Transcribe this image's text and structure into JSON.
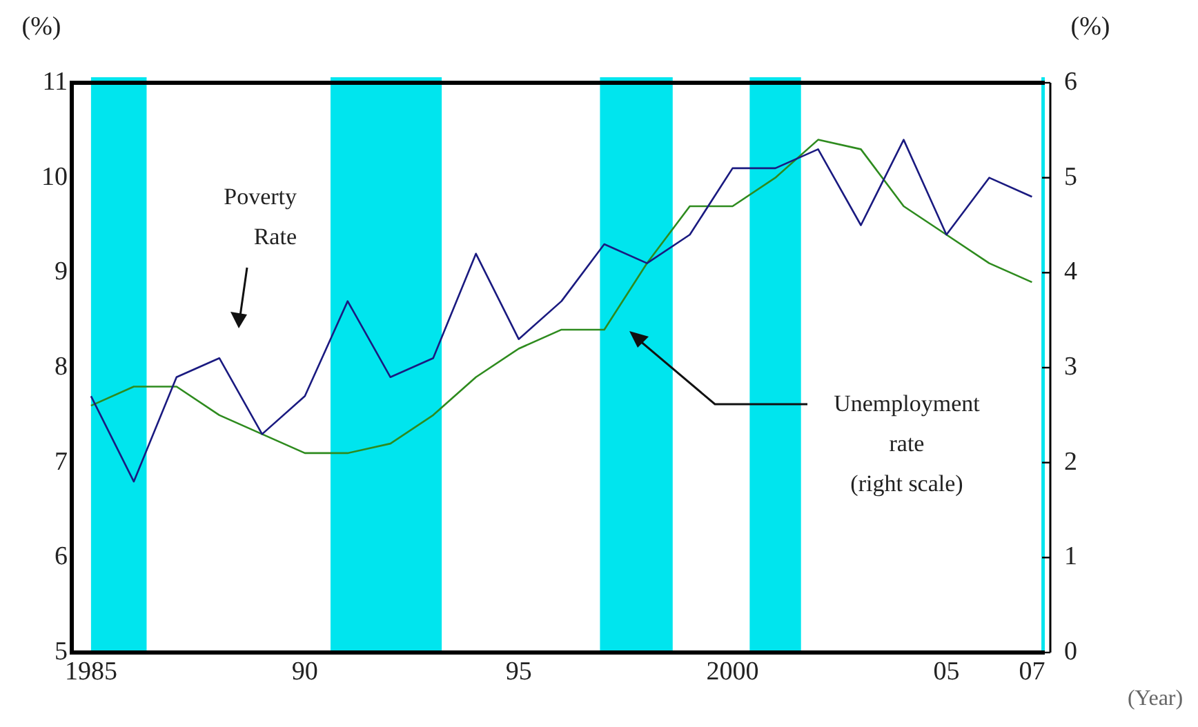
{
  "chart_data": {
    "type": "line",
    "x": [
      1985,
      1986,
      1987,
      1988,
      1989,
      1990,
      1991,
      1992,
      1993,
      1994,
      1995,
      1996,
      1997,
      1998,
      1999,
      2000,
      2001,
      2002,
      2003,
      2004,
      2005,
      2006,
      2007
    ],
    "series": [
      {
        "color": "#1a1a80",
        "values": [
          7.7,
          6.8,
          7.9,
          8.1,
          7.3,
          7.7,
          8.7,
          7.9,
          8.1,
          9.2,
          8.3,
          8.7,
          9.3,
          9.1,
          9.4,
          10.1,
          10.1,
          10.3,
          9.5,
          10.4,
          9.4,
          10.0,
          9.8
        ]
      },
      {
        "color": "#2e8b1e",
        "axis": "y2",
        "values": [
          2.6,
          2.8,
          2.8,
          2.5,
          2.3,
          2.1,
          2.1,
          2.2,
          2.5,
          2.9,
          3.2,
          3.4,
          3.4,
          4.1,
          4.7,
          4.7,
          5.0,
          5.4,
          5.3,
          4.7,
          4.4,
          4.1,
          3.9
        ]
      }
    ],
    "xlim": [
      1984.55,
      2007.3
    ],
    "xticks": [
      {
        "value": 1985,
        "label": "1985"
      },
      {
        "value": 1990,
        "label": "90"
      },
      {
        "value": 1995,
        "label": "95"
      },
      {
        "value": 2000,
        "label": "2000"
      },
      {
        "value": 2005,
        "label": "05"
      },
      {
        "value": 2007,
        "label": "07"
      }
    ],
    "ylim": [
      5,
      11
    ],
    "yticks": [
      5,
      6,
      7,
      8,
      9,
      10,
      11
    ],
    "y2lim": [
      0,
      6
    ],
    "y2ticks": [
      0,
      1,
      2,
      3,
      4,
      5,
      6
    ],
    "ylabel": "(%)",
    "y2label": "(%)",
    "xlabel": "(Year)",
    "bands": [
      {
        "axis": "x",
        "from": 1985,
        "to": 1986.3,
        "color": "#00e5ee"
      },
      {
        "axis": "x",
        "from": 1990.6,
        "to": 1993.2,
        "color": "#00e5ee"
      },
      {
        "axis": "x",
        "from": 1996.9,
        "to": 1998.6,
        "color": "#00e5ee"
      },
      {
        "axis": "x",
        "from": 2000.4,
        "to": 2001.6,
        "color": "#00e5ee"
      },
      {
        "axis": "x",
        "from": 2007.22,
        "to": 2007.3,
        "color": "#00e5ee"
      }
    ],
    "annotations": [
      "Poverty\nRate",
      "Unemployment\nrate\n(right scale)"
    ],
    "grid": false,
    "legend": false,
    "marker": "none",
    "line_style": "solid"
  }
}
